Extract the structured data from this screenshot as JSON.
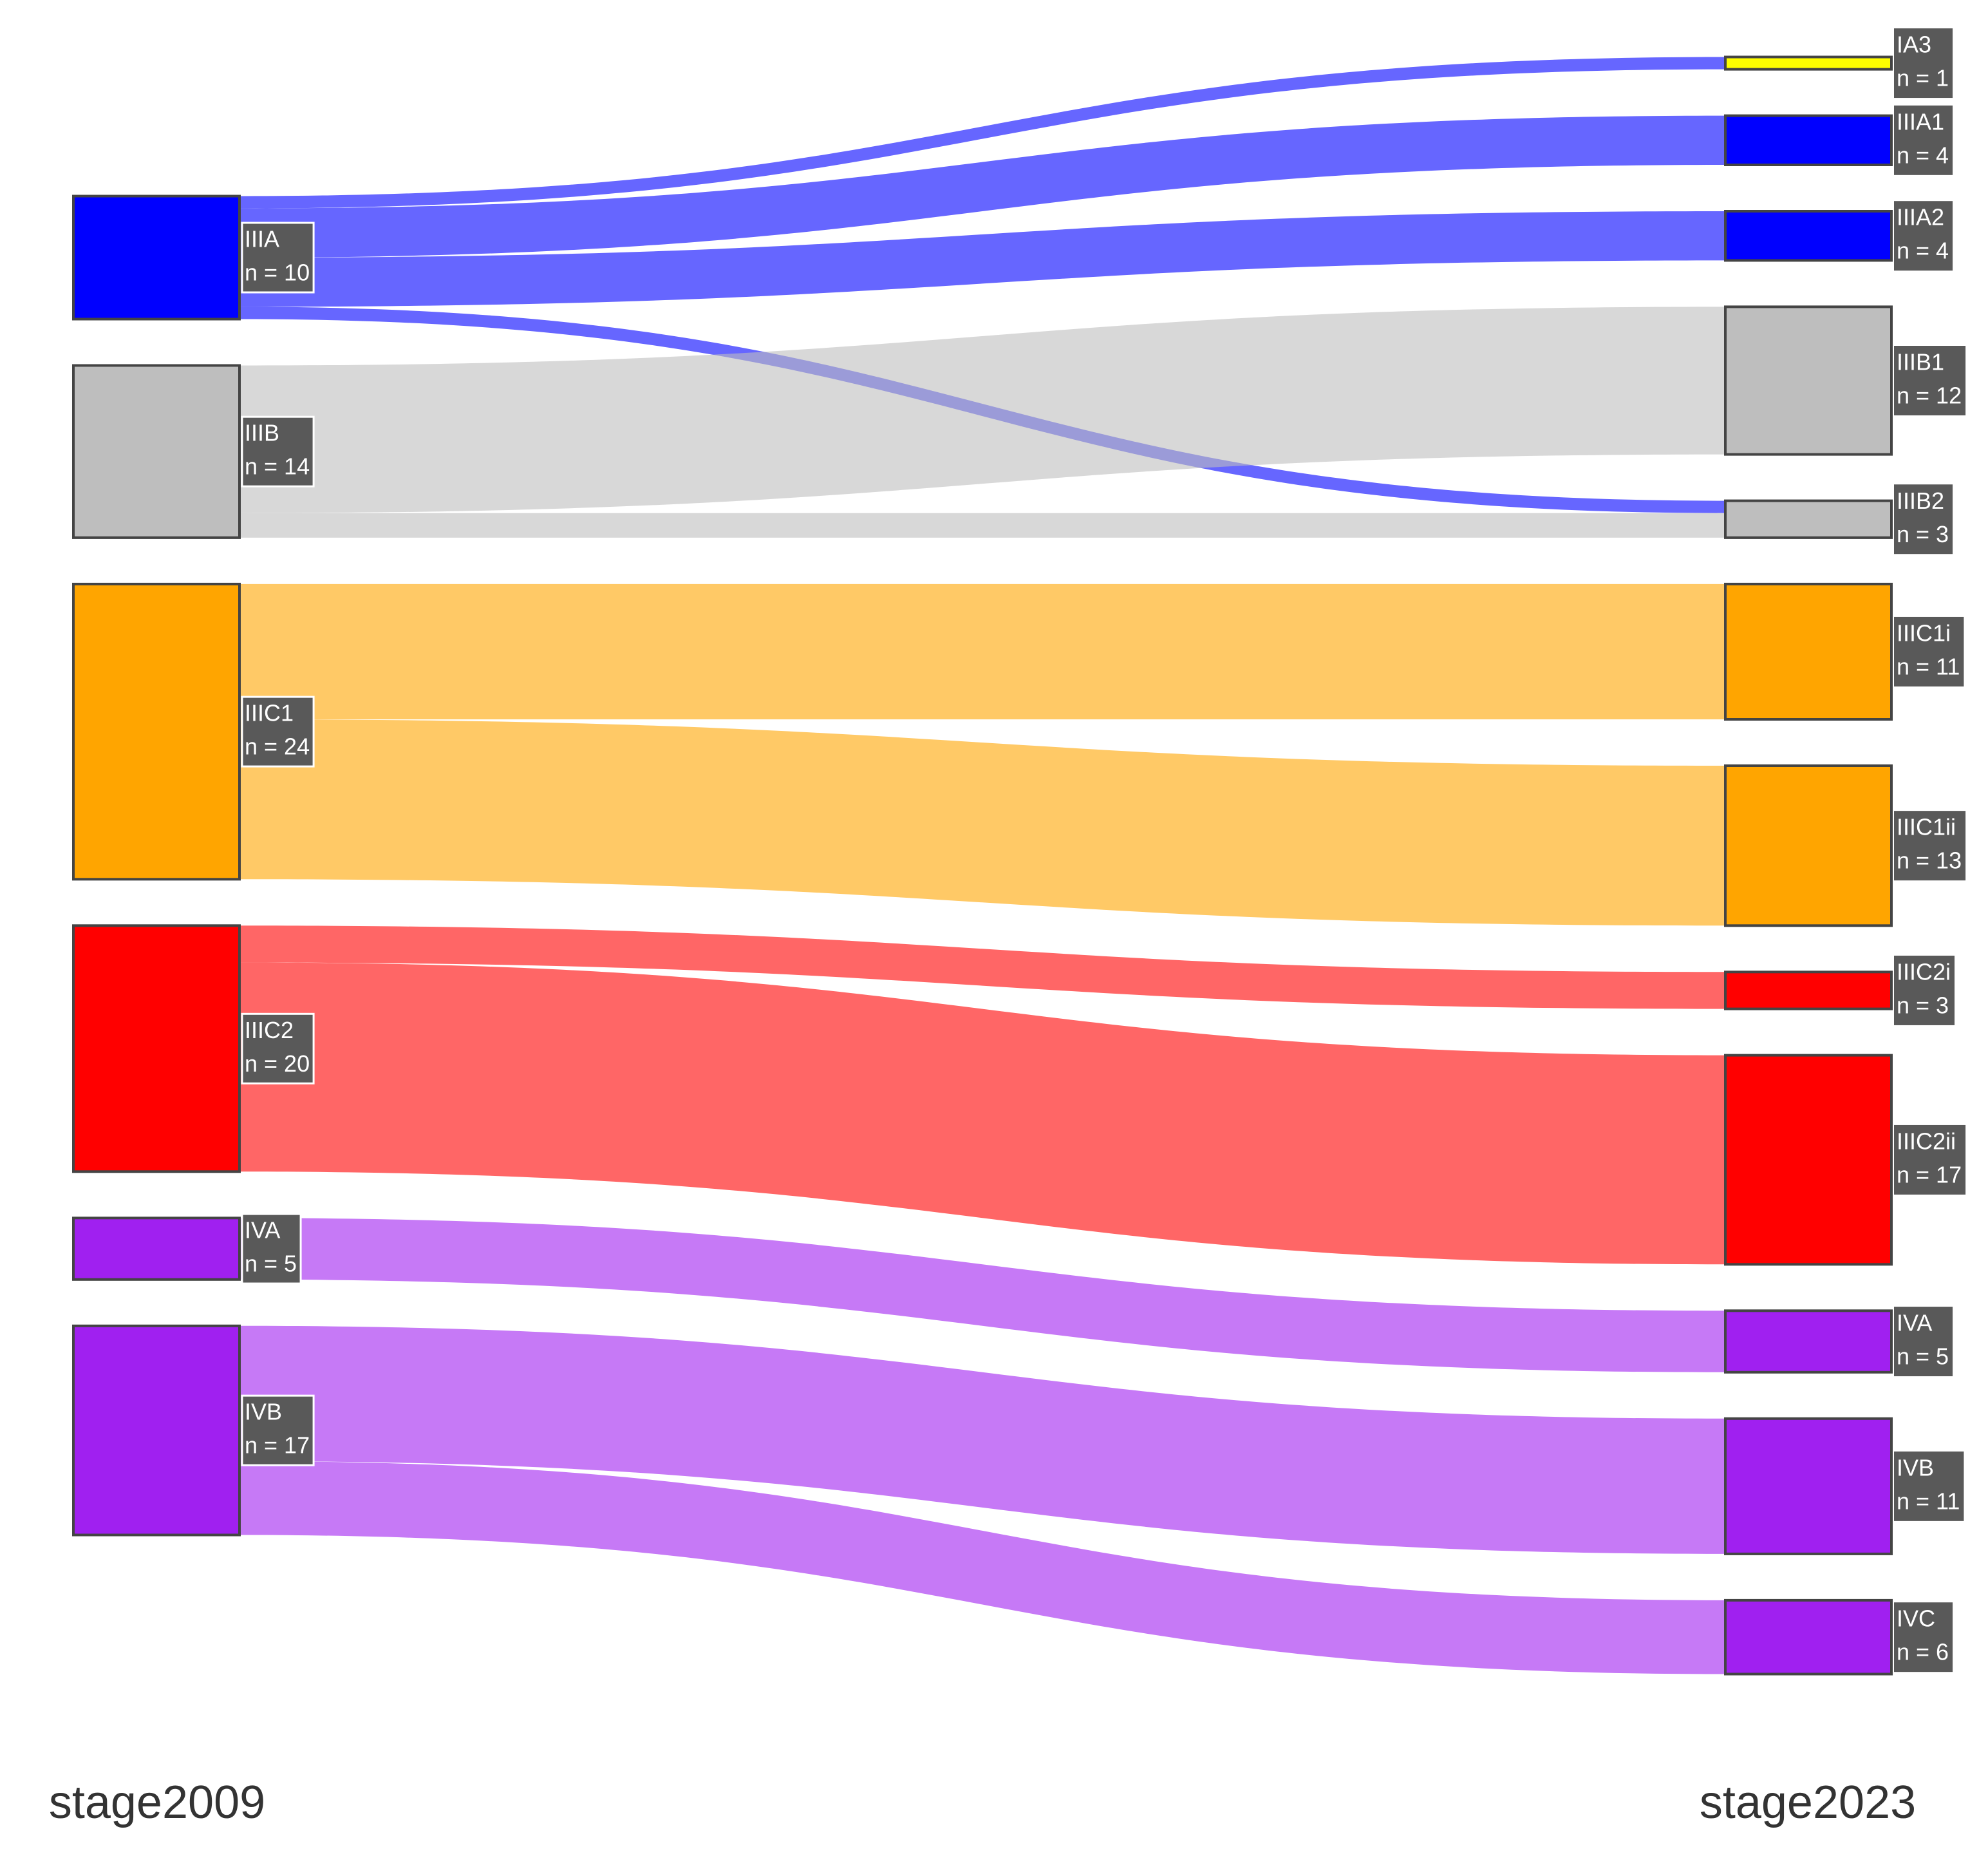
{
  "chart_data": {
    "type": "sankey",
    "axis_labels": [
      "stage2009",
      "stage2023"
    ],
    "left_nodes": [
      {
        "name": "IIIA",
        "label": "n = 10",
        "value": 10,
        "color": "#0000ff"
      },
      {
        "name": "IIIB",
        "label": "n = 14",
        "value": 14,
        "color": "#bebebe"
      },
      {
        "name": "IIIC1",
        "label": "n = 24",
        "value": 24,
        "color": "#ffa500"
      },
      {
        "name": "IIIC2",
        "label": "n = 20",
        "value": 20,
        "color": "#ff0000"
      },
      {
        "name": "IVA",
        "label": "n = 5",
        "value": 5,
        "color": "#a020f0"
      },
      {
        "name": "IVB",
        "label": "n = 17",
        "value": 17,
        "color": "#a020f0"
      }
    ],
    "right_nodes": [
      {
        "name": "IA3",
        "label": "n = 1",
        "value": 1,
        "color": "#ffff00"
      },
      {
        "name": "IIIA1",
        "label": "n = 4",
        "value": 4,
        "color": "#0000ff"
      },
      {
        "name": "IIIA2",
        "label": "n = 4",
        "value": 4,
        "color": "#0000ff"
      },
      {
        "name": "IIIB1",
        "label": "n = 12",
        "value": 12,
        "color": "#bebebe"
      },
      {
        "name": "IIIB2",
        "label": "n = 3",
        "value": 3,
        "color": "#bebebe"
      },
      {
        "name": "IIIC1i",
        "label": "n = 11",
        "value": 11,
        "color": "#ffa500"
      },
      {
        "name": "IIIC1ii",
        "label": "n = 13",
        "value": 13,
        "color": "#ffa500"
      },
      {
        "name": "IIIC2i",
        "label": "n = 3",
        "value": 3,
        "color": "#ff0000"
      },
      {
        "name": "IIIC2ii",
        "label": "n = 17",
        "value": 17,
        "color": "#ff0000"
      },
      {
        "name": "IVA",
        "label": "n = 5",
        "value": 5,
        "color": "#a020f0"
      },
      {
        "name": "IVB",
        "label": "n = 11",
        "value": 11,
        "color": "#a020f0"
      },
      {
        "name": "IVC",
        "label": "n = 6",
        "value": 6,
        "color": "#a020f0"
      }
    ],
    "links": [
      {
        "source": "IIIA",
        "target": "IA3",
        "value": 1
      },
      {
        "source": "IIIA",
        "target": "IIIA1",
        "value": 4
      },
      {
        "source": "IIIA",
        "target": "IIIA2",
        "value": 4
      },
      {
        "source": "IIIA",
        "target": "IIIB2",
        "value": 1
      },
      {
        "source": "IIIB",
        "target": "IIIB1",
        "value": 12
      },
      {
        "source": "IIIB",
        "target": "IIIB2",
        "value": 2
      },
      {
        "source": "IIIC1",
        "target": "IIIC1i",
        "value": 11
      },
      {
        "source": "IIIC1",
        "target": "IIIC1ii",
        "value": 13
      },
      {
        "source": "IIIC2",
        "target": "IIIC2i",
        "value": 3
      },
      {
        "source": "IIIC2",
        "target": "IIIC2ii",
        "value": 17
      },
      {
        "source": "IVA",
        "target": "IVA",
        "value": 5
      },
      {
        "source": "IVB",
        "target": "IVB",
        "value": 11
      },
      {
        "source": "IVB",
        "target": "IVC",
        "value": 6
      }
    ]
  }
}
